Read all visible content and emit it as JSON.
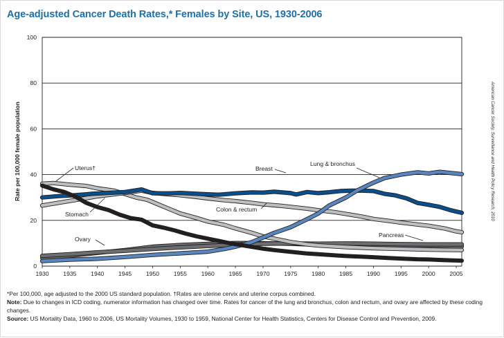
{
  "chart_data": {
    "type": "line",
    "title": "Age-adjusted Cancer Death Rates,* Females by Site, US, 1930-2006",
    "xlabel": "",
    "ylabel": "Rate per 100,000 female population",
    "xlim": [
      1930,
      2006
    ],
    "ylim": [
      0,
      100
    ],
    "x_ticks": [
      1930,
      1935,
      1940,
      1945,
      1950,
      1955,
      1960,
      1965,
      1970,
      1975,
      1980,
      1985,
      1990,
      1995,
      2000,
      2005
    ],
    "y_ticks": [
      0,
      20,
      40,
      60,
      80,
      100
    ],
    "grid": "horizontal",
    "series": [
      {
        "name": "Breast",
        "label": "Breast",
        "color": "#0a4f8c",
        "points": [
          [
            1930,
            30
          ],
          [
            1933,
            30.6
          ],
          [
            1936,
            31
          ],
          [
            1939,
            31.6
          ],
          [
            1942,
            32
          ],
          [
            1945,
            32.4
          ],
          [
            1948,
            33.5
          ],
          [
            1950,
            31.8
          ],
          [
            1953,
            31.8
          ],
          [
            1955,
            32
          ],
          [
            1958,
            31.6
          ],
          [
            1960,
            31.4
          ],
          [
            1962,
            31.2
          ],
          [
            1965,
            31.8
          ],
          [
            1968,
            32.2
          ],
          [
            1970,
            32.1
          ],
          [
            1972,
            32.5
          ],
          [
            1975,
            31.9
          ],
          [
            1976,
            31.3
          ],
          [
            1978,
            32.4
          ],
          [
            1980,
            31.9
          ],
          [
            1982,
            32.3
          ],
          [
            1984,
            32.8
          ],
          [
            1986,
            33
          ],
          [
            1988,
            33
          ],
          [
            1990,
            32.8
          ],
          [
            1992,
            31.6
          ],
          [
            1994,
            30.9
          ],
          [
            1996,
            29.6
          ],
          [
            1998,
            27.6
          ],
          [
            2000,
            26.8
          ],
          [
            2002,
            25.9
          ],
          [
            2004,
            24.4
          ],
          [
            2006,
            23.3
          ]
        ]
      },
      {
        "name": "Lung & bronchus",
        "label": "Lung & bronchus",
        "color": "#5a86bf",
        "points": [
          [
            1930,
            2.2
          ],
          [
            1935,
            2.8
          ],
          [
            1940,
            3.2
          ],
          [
            1945,
            4
          ],
          [
            1950,
            4.9
          ],
          [
            1955,
            5.6
          ],
          [
            1960,
            6.3
          ],
          [
            1963,
            7.5
          ],
          [
            1965,
            8.5
          ],
          [
            1968,
            10.5
          ],
          [
            1970,
            12.5
          ],
          [
            1972,
            14.5
          ],
          [
            1975,
            17
          ],
          [
            1978,
            20.5
          ],
          [
            1980,
            23
          ],
          [
            1982,
            26.5
          ],
          [
            1985,
            30
          ],
          [
            1987,
            33
          ],
          [
            1990,
            36.5
          ],
          [
            1992,
            38.5
          ],
          [
            1995,
            40
          ],
          [
            1998,
            41
          ],
          [
            2000,
            40.5
          ],
          [
            2002,
            41.2
          ],
          [
            2004,
            40.7
          ],
          [
            2006,
            40.2
          ]
        ]
      },
      {
        "name": "Colon & rectum",
        "label": "Colon & rectum",
        "color": "#bcbec0",
        "points": [
          [
            1930,
            26.5
          ],
          [
            1935,
            28.5
          ],
          [
            1940,
            30.5
          ],
          [
            1945,
            32
          ],
          [
            1948,
            33
          ],
          [
            1950,
            32
          ],
          [
            1953,
            31.4
          ],
          [
            1955,
            31
          ],
          [
            1958,
            30.2
          ],
          [
            1960,
            29.6
          ],
          [
            1963,
            28.8
          ],
          [
            1965,
            28.4
          ],
          [
            1968,
            27.6
          ],
          [
            1970,
            27
          ],
          [
            1973,
            26.4
          ],
          [
            1975,
            25.9
          ],
          [
            1978,
            25.1
          ],
          [
            1980,
            24.4
          ],
          [
            1983,
            23.6
          ],
          [
            1985,
            22.8
          ],
          [
            1988,
            21.6
          ],
          [
            1990,
            20.6
          ],
          [
            1993,
            19.7
          ],
          [
            1995,
            19
          ],
          [
            1998,
            18.2
          ],
          [
            2000,
            17.6
          ],
          [
            2003,
            16.4
          ],
          [
            2005,
            15.2
          ],
          [
            2006,
            14.8
          ]
        ]
      },
      {
        "name": "Uterus",
        "label": "Uterus†",
        "color": "#bcbec0",
        "points": [
          [
            1930,
            36
          ],
          [
            1932,
            36.3
          ],
          [
            1935,
            35.6
          ],
          [
            1938,
            35
          ],
          [
            1940,
            34
          ],
          [
            1943,
            33
          ],
          [
            1945,
            31.5
          ],
          [
            1947,
            30
          ],
          [
            1949,
            29
          ],
          [
            1951,
            27
          ],
          [
            1953,
            25
          ],
          [
            1955,
            23
          ],
          [
            1958,
            21
          ],
          [
            1960,
            19.5
          ],
          [
            1963,
            18
          ],
          [
            1965,
            16.5
          ],
          [
            1968,
            14.5
          ],
          [
            1970,
            13
          ],
          [
            1973,
            11.5
          ],
          [
            1975,
            10.5
          ],
          [
            1978,
            9.5
          ],
          [
            1980,
            9
          ],
          [
            1985,
            8.3
          ],
          [
            1990,
            7.8
          ],
          [
            1995,
            7.5
          ],
          [
            2000,
            7.2
          ],
          [
            2006,
            7
          ]
        ]
      },
      {
        "name": "Stomach",
        "label": "Stomach",
        "color": "#231f20",
        "points": [
          [
            1930,
            35.2
          ],
          [
            1932,
            33.6
          ],
          [
            1934,
            32.4
          ],
          [
            1936,
            30.4
          ],
          [
            1938,
            27.6
          ],
          [
            1940,
            25.8
          ],
          [
            1942,
            24.5
          ],
          [
            1944,
            22.5
          ],
          [
            1946,
            21
          ],
          [
            1948,
            20.3
          ],
          [
            1950,
            17.8
          ],
          [
            1952,
            16.8
          ],
          [
            1954,
            15.6
          ],
          [
            1956,
            14.2
          ],
          [
            1958,
            13
          ],
          [
            1960,
            12
          ],
          [
            1962,
            11
          ],
          [
            1964,
            10
          ],
          [
            1966,
            9.2
          ],
          [
            1968,
            8.4
          ],
          [
            1970,
            7.6
          ],
          [
            1972,
            7
          ],
          [
            1974,
            6.5
          ],
          [
            1976,
            6
          ],
          [
            1978,
            5.5
          ],
          [
            1980,
            5.2
          ],
          [
            1983,
            4.7
          ],
          [
            1985,
            4.4
          ],
          [
            1988,
            4.1
          ],
          [
            1990,
            3.9
          ],
          [
            1993,
            3.5
          ],
          [
            1995,
            3.3
          ],
          [
            1998,
            3
          ],
          [
            2000,
            2.9
          ],
          [
            2003,
            2.6
          ],
          [
            2006,
            2.4
          ]
        ]
      },
      {
        "name": "Ovary",
        "label": "Ovary",
        "color": "#6d6e71",
        "points": [
          [
            1930,
            3.6
          ],
          [
            1935,
            4.5
          ],
          [
            1940,
            5.8
          ],
          [
            1945,
            7
          ],
          [
            1950,
            8.5
          ],
          [
            1955,
            9.2
          ],
          [
            1960,
            9.7
          ],
          [
            1965,
            10.1
          ],
          [
            1970,
            10
          ],
          [
            1975,
            9.8
          ],
          [
            1980,
            9.3
          ],
          [
            1985,
            9
          ],
          [
            1990,
            9.2
          ],
          [
            1995,
            9.1
          ],
          [
            2000,
            8.9
          ],
          [
            2006,
            8.6
          ]
        ]
      },
      {
        "name": "Pancreas",
        "label": "Pancreas",
        "color": "#6d6e71",
        "points": [
          [
            1930,
            4.5
          ],
          [
            1935,
            5.2
          ],
          [
            1940,
            6
          ],
          [
            1945,
            6.7
          ],
          [
            1950,
            7.5
          ],
          [
            1955,
            8.2
          ],
          [
            1960,
            8.8
          ],
          [
            1965,
            9.4
          ],
          [
            1970,
            9.8
          ],
          [
            1975,
            9.9
          ],
          [
            1980,
            9.8
          ],
          [
            1985,
            9.9
          ],
          [
            1990,
            9.8
          ],
          [
            1995,
            9.6
          ],
          [
            2000,
            9.5
          ],
          [
            2006,
            9.5
          ]
        ]
      }
    ],
    "annotations": [
      "Breast",
      "Lung & bronchus",
      "Colon & rectum",
      "Uterus†",
      "Stomach",
      "Ovary",
      "Pancreas"
    ]
  },
  "footnotes": {
    "asterisk_note": "*Per 100,000, age adjusted to the 2000 US standard population. †Rates are uterine cervix and uterine corpus combined.",
    "note_label": "Note:",
    "note_text": "Due to changes in ICD coding, numerator information has changed over time. Rates for cancer of the lung and bronchus, colon and rectum, and ovary are affected by these coding changes.",
    "source_label": "Source:",
    "source_text": "US Mortality Data, 1960 to 2006, US Mortality Volumes, 1930 to 1959, National Center for Health Statistics, Centers for Disease Control and Prevention, 2009."
  },
  "credit": "American Cancer Society, Surveillance and Health Policy Research, 2010"
}
